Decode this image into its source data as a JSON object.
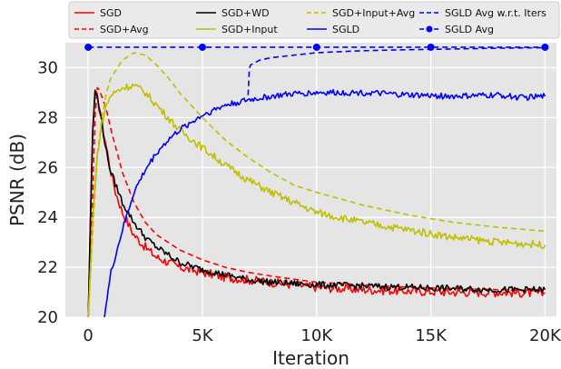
{
  "chart_data": {
    "type": "line",
    "xlabel": "Iteration",
    "ylabel": "PSNR (dB)",
    "xlim": [
      -1000,
      20500
    ],
    "ylim": [
      20,
      31
    ],
    "x_ticks": [
      0,
      5000,
      10000,
      15000,
      20000
    ],
    "x_tick_labels": [
      "0",
      "5K",
      "10K",
      "15K",
      "20K"
    ],
    "y_ticks": [
      20,
      22,
      24,
      26,
      28,
      30
    ],
    "y_tick_labels": [
      "20",
      "22",
      "24",
      "26",
      "28",
      "30"
    ],
    "grid": true,
    "background": "#e5e5e5",
    "legend_placement": "top, 4 columns",
    "series": [
      {
        "name": "SGD",
        "color": "#ff0000",
        "style": "solid",
        "marker": "none",
        "noise": 0.18,
        "x": [
          0,
          100,
          200,
          300,
          400,
          600,
          800,
          1000,
          1200,
          1500,
          2000,
          2500,
          3000,
          4000,
          5000,
          6000,
          7000,
          8000,
          10000,
          12000,
          14000,
          16000,
          18000,
          20000
        ],
        "y": [
          20,
          24,
          27.5,
          29,
          28.8,
          27.8,
          26.8,
          25.8,
          25,
          24.2,
          23.3,
          22.8,
          22.4,
          22.0,
          21.8,
          21.6,
          21.5,
          21.4,
          21.2,
          21.1,
          21.05,
          21.0,
          21.0,
          20.95
        ]
      },
      {
        "name": "SGD+Avg",
        "color": "#ff0000",
        "style": "dashed",
        "marker": "none",
        "noise": 0,
        "x": [
          0,
          100,
          200,
          300,
          400,
          500,
          800,
          1000,
          1500,
          2000,
          2500,
          3000,
          4000,
          5000,
          6000,
          7000,
          8000,
          10000,
          12000,
          14000,
          16000,
          18000,
          20000
        ],
        "y": [
          20,
          22,
          25,
          28,
          29.2,
          29.1,
          28.3,
          27.5,
          25.8,
          24.6,
          23.8,
          23.3,
          22.7,
          22.3,
          22.0,
          21.8,
          21.65,
          21.4,
          21.3,
          21.2,
          21.15,
          21.1,
          21.05
        ]
      },
      {
        "name": "SGD+WD",
        "color": "#000000",
        "style": "solid",
        "marker": "none",
        "noise": 0.13,
        "x": [
          0,
          100,
          200,
          300,
          400,
          600,
          800,
          1000,
          1500,
          2000,
          2500,
          3000,
          4000,
          5000,
          6000,
          7000,
          8000,
          10000,
          12000,
          14000,
          16000,
          18000,
          20000
        ],
        "y": [
          20,
          24,
          27.5,
          29.1,
          28.8,
          27.8,
          26.6,
          25.8,
          24.6,
          23.8,
          23.2,
          22.8,
          22.2,
          21.9,
          21.7,
          21.5,
          21.4,
          21.3,
          21.25,
          21.2,
          21.15,
          21.1,
          21.1
        ]
      },
      {
        "name": "SGD+Input",
        "color": "#bfbf00",
        "style": "solid",
        "marker": "none",
        "noise": 0.15,
        "x": [
          0,
          200,
          400,
          600,
          800,
          1000,
          1500,
          2000,
          2500,
          3000,
          3500,
          4000,
          5000,
          6000,
          7000,
          8000,
          9000,
          10000,
          12000,
          14000,
          16000,
          18000,
          20000
        ],
        "y": [
          20,
          24,
          26.5,
          27.8,
          28.5,
          28.9,
          29.2,
          29.3,
          29.0,
          28.5,
          28.0,
          27.5,
          26.8,
          26.1,
          25.5,
          25.0,
          24.6,
          24.2,
          23.8,
          23.5,
          23.2,
          23.0,
          22.9
        ]
      },
      {
        "name": "SGD+Input+Avg",
        "color": "#bfbf00",
        "style": "dashed",
        "marker": "none",
        "noise": 0,
        "x": [
          0,
          200,
          400,
          600,
          800,
          1000,
          1500,
          2000,
          2500,
          3000,
          3500,
          4000,
          5000,
          6000,
          7000,
          8000,
          9000,
          10000,
          12000,
          14000,
          16000,
          18000,
          20000
        ],
        "y": [
          20,
          23.5,
          26.5,
          28.0,
          29.0,
          29.6,
          30.3,
          30.6,
          30.5,
          30.1,
          29.6,
          29.0,
          28.0,
          27.1,
          26.4,
          25.8,
          25.3,
          25.0,
          24.5,
          24.1,
          23.8,
          23.6,
          23.45
        ]
      },
      {
        "name": "SGLD",
        "color": "#0000ff",
        "style": "solid",
        "marker": "none",
        "noise": 0.12,
        "x": [
          700,
          1000,
          1500,
          2000,
          2500,
          3000,
          3500,
          4000,
          5000,
          6000,
          7000,
          8000,
          9000,
          10000,
          12000,
          14000,
          16000,
          18000,
          19000,
          20000
        ],
        "y": [
          20,
          21.8,
          23.5,
          25.0,
          25.9,
          26.6,
          27.1,
          27.5,
          28.1,
          28.5,
          28.7,
          28.85,
          28.95,
          29.0,
          29.0,
          28.9,
          28.85,
          28.9,
          28.8,
          28.85
        ]
      },
      {
        "name": "SGLD Avg w.r.t. Iters",
        "color": "#0000ff",
        "style": "dashed",
        "marker": "none",
        "noise": 0,
        "x": [
          7000,
          7050,
          7100,
          7500,
          8000,
          9000,
          10000,
          12000,
          14000,
          16000,
          18000,
          20000
        ],
        "y": [
          28.9,
          29.9,
          30.1,
          30.3,
          30.4,
          30.5,
          30.6,
          30.68,
          30.72,
          30.75,
          30.78,
          30.8
        ]
      },
      {
        "name": "SGLD Avg",
        "color": "#0000ff",
        "style": "dashed",
        "marker": "circle",
        "noise": 0,
        "x": [
          0,
          5000,
          10000,
          15000,
          20000
        ],
        "y": [
          30.82,
          30.82,
          30.82,
          30.82,
          30.82
        ]
      }
    ]
  }
}
